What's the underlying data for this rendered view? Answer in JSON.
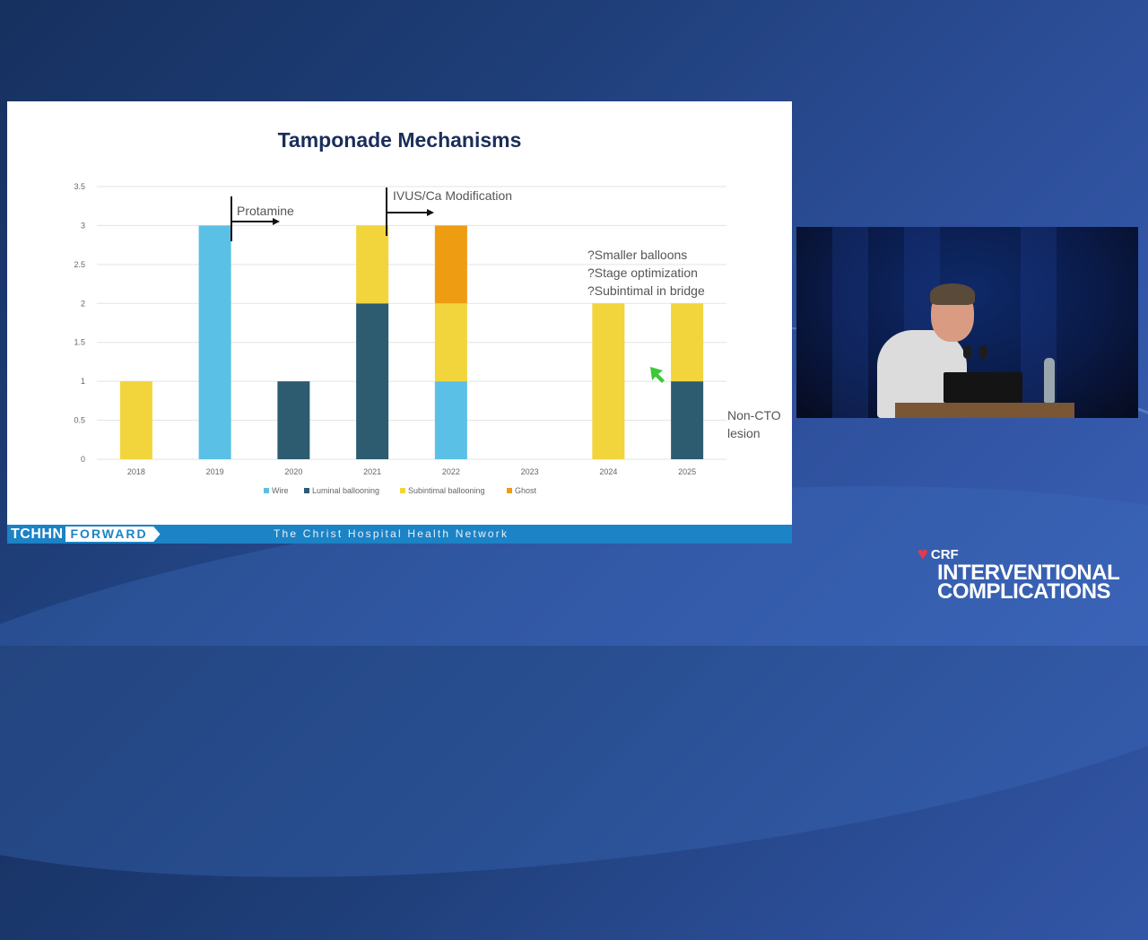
{
  "slide": {
    "title": "Tamponade Mechanisms",
    "annotations": {
      "protamine": "Protamine",
      "ivus": "IVUS/Ca Modification",
      "questions": [
        "?Smaller balloons",
        "?Stage optimization",
        "?Subintimal in bridge"
      ],
      "non_cto": [
        "Non-CTO",
        "lesion"
      ]
    },
    "footer": {
      "logo_left": "TCHHN",
      "logo_right": "FORWARD",
      "network": "The Christ Hospital Health Network"
    }
  },
  "chart_data": {
    "type": "bar",
    "stacked": true,
    "categories": [
      "2018",
      "2019",
      "2020",
      "2021",
      "2022",
      "2023",
      "2024",
      "2025"
    ],
    "series": [
      {
        "name": "Wire",
        "color": "#5bc0e5",
        "values": [
          0,
          3,
          0,
          0,
          1,
          0,
          0,
          0
        ]
      },
      {
        "name": "Luminal ballooning",
        "color": "#2d5c70",
        "values": [
          0,
          0,
          1,
          2,
          0,
          0,
          0,
          1
        ]
      },
      {
        "name": "Subintimal ballooning",
        "color": "#f2d43d",
        "values": [
          1,
          0,
          0,
          1,
          1,
          0,
          2,
          1
        ]
      },
      {
        "name": "Ghost",
        "color": "#ee9c12",
        "values": [
          0,
          0,
          0,
          0,
          1,
          0,
          0,
          0
        ]
      }
    ],
    "ylim": [
      0,
      3.5
    ],
    "yticks": [
      "0",
      "0.5",
      "1",
      "1.5",
      "2",
      "2.5",
      "3",
      "3.5"
    ],
    "grid": true,
    "legend_position": "bottom"
  },
  "branding": {
    "crf": "CRF",
    "title_line1": "INTERVENTIONAL",
    "title_line2": "COMPLICATIONS",
    "heart_color": "#e23b4b"
  }
}
